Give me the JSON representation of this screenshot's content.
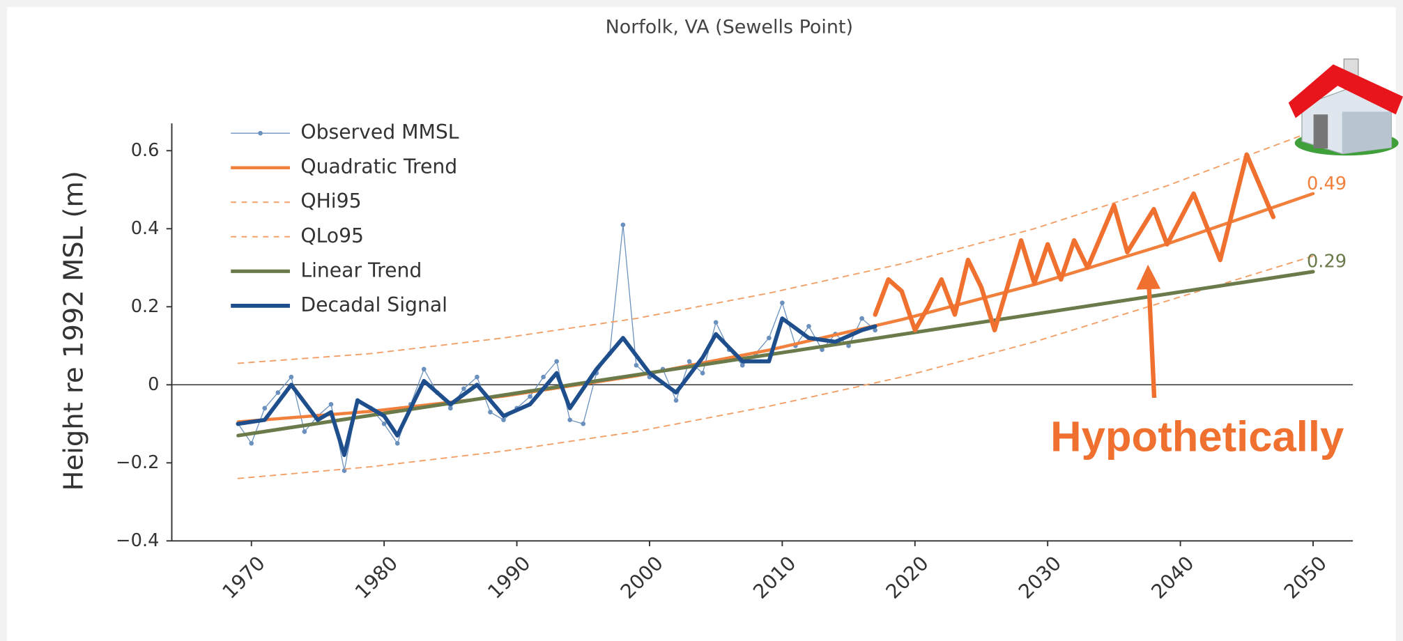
{
  "chart_data": {
    "type": "line",
    "title": "Norfolk, VA (Sewells Point)",
    "y_label": "Height re 1992 MSL (m)",
    "xlim": [
      1964,
      2053
    ],
    "xticks": [
      1970,
      1980,
      1990,
      2000,
      2010,
      2020,
      2030,
      2040,
      2050
    ],
    "ylim": [
      -0.4,
      0.67
    ],
    "yticks": [
      {
        "value": -0.4,
        "label": "−0.4"
      },
      {
        "value": -0.2,
        "label": "−0.2"
      },
      0,
      0.2,
      0.4,
      0.6
    ],
    "legend": "upper left",
    "series": [
      {
        "name": "Observed MMSL",
        "color": "#6a90bd",
        "width": 1,
        "markers": true,
        "x": [
          1969,
          1970,
          1971,
          1972,
          1973,
          1974,
          1975,
          1976,
          1977,
          1978,
          1979,
          1980,
          1981,
          1982,
          1983,
          1984,
          1985,
          1986,
          1987,
          1988,
          1989,
          1990,
          1991,
          1992,
          1993,
          1994,
          1995,
          1996,
          1997,
          1998,
          1999,
          2000,
          2001,
          2002,
          2003,
          2004,
          2005,
          2006,
          2007,
          2008,
          2009,
          2010,
          2011,
          2012,
          2013,
          2014,
          2015,
          2016,
          2017
        ],
        "values": [
          -0.1,
          -0.15,
          -0.06,
          -0.02,
          0.02,
          -0.12,
          -0.08,
          -0.05,
          -0.22,
          -0.04,
          -0.06,
          -0.1,
          -0.15,
          -0.05,
          0.04,
          -0.02,
          -0.06,
          -0.01,
          0.02,
          -0.07,
          -0.09,
          -0.06,
          -0.03,
          0.02,
          0.06,
          -0.09,
          -0.1,
          0.03,
          0.08,
          0.41,
          0.05,
          0.02,
          0.04,
          -0.04,
          0.06,
          0.03,
          0.16,
          0.09,
          0.05,
          0.08,
          0.12,
          0.21,
          0.1,
          0.15,
          0.09,
          0.13,
          0.1,
          0.17,
          0.14
        ]
      },
      {
        "name": "Quadratic Trend",
        "color": "#f0803c",
        "width": 3.5,
        "x": [
          1969,
          1979,
          1989,
          1999,
          2009,
          2019,
          2029,
          2039,
          2050
        ],
        "values": [
          -0.095,
          -0.068,
          -0.029,
          0.023,
          0.089,
          0.167,
          0.257,
          0.361,
          0.49
        ]
      },
      {
        "name": "QHi95",
        "color": "#f2a068",
        "width": 1.5,
        "dash": true,
        "x": [
          1969,
          1979,
          1989,
          1999,
          2009,
          2019,
          2029,
          2039,
          2050
        ],
        "values": [
          0.055,
          0.08,
          0.12,
          0.17,
          0.235,
          0.31,
          0.4,
          0.51,
          0.65
        ]
      },
      {
        "name": "QLo95",
        "color": "#f2a068",
        "width": 1.5,
        "dash": true,
        "x": [
          1969,
          1979,
          1989,
          1999,
          2009,
          2019,
          2029,
          2039,
          2050
        ],
        "values": [
          -0.24,
          -0.21,
          -0.17,
          -0.12,
          -0.055,
          0.02,
          0.11,
          0.215,
          0.33
        ]
      },
      {
        "name": "Linear Trend",
        "color": "#6b7a4a",
        "width": 4,
        "x": [
          1969,
          2050
        ],
        "values": [
          -0.13,
          0.29
        ]
      },
      {
        "name": "Decadal Signal",
        "color": "#1f4e8c",
        "width": 4.5,
        "x": [
          1969,
          1971,
          1973,
          1975,
          1976,
          1977,
          1978,
          1980,
          1981,
          1983,
          1985,
          1987,
          1989,
          1991,
          1993,
          1994,
          1996,
          1998,
          2000,
          2002,
          2004,
          2005,
          2007,
          2009,
          2010,
          2012,
          2014,
          2016,
          2017
        ],
        "values": [
          -0.1,
          -0.09,
          0.0,
          -0.09,
          -0.07,
          -0.18,
          -0.04,
          -0.08,
          -0.13,
          0.01,
          -0.05,
          0.0,
          -0.08,
          -0.05,
          0.03,
          -0.06,
          0.04,
          0.12,
          0.03,
          -0.02,
          0.07,
          0.13,
          0.06,
          0.06,
          0.17,
          0.12,
          0.11,
          0.14,
          0.15
        ]
      }
    ],
    "annotation_curve": {
      "color": "#f07030",
      "x": [
        2017,
        2018,
        2019,
        2020,
        2021,
        2022,
        2023,
        2024,
        2025,
        2026,
        2028,
        2029,
        2030,
        2031,
        2032,
        2033,
        2035,
        2036,
        2038,
        2039,
        2041,
        2043,
        2045,
        2047
      ],
      "values": [
        0.18,
        0.27,
        0.24,
        0.14,
        0.2,
        0.27,
        0.18,
        0.32,
        0.25,
        0.14,
        0.37,
        0.26,
        0.36,
        0.27,
        0.37,
        0.3,
        0.46,
        0.34,
        0.45,
        0.36,
        0.49,
        0.32,
        0.59,
        0.43
      ]
    },
    "annotations": [
      "0.49",
      "0.29",
      "Hypothetically"
    ]
  }
}
